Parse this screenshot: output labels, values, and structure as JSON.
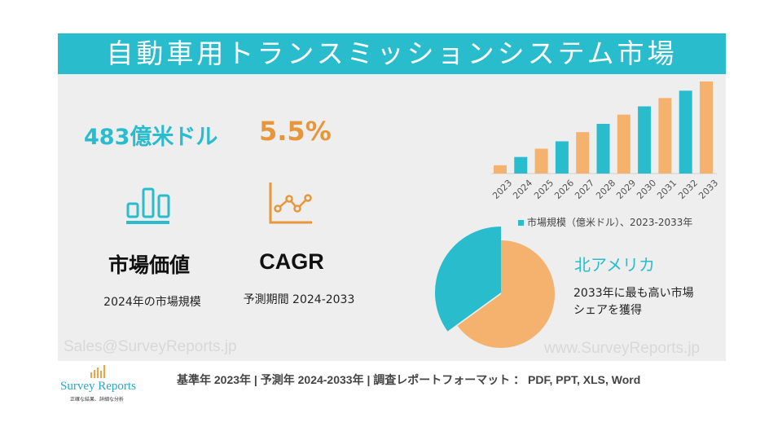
{
  "title": "自動車用トランスミッションシステム市場",
  "market_value": {
    "value": "483億米ドル",
    "label": "市場価値",
    "sub": "2024年の市場規模",
    "icon": "bar-chart-icon"
  },
  "cagr": {
    "value": "5.5%",
    "label": "CAGR",
    "sub": "予測期間 2024-2033",
    "icon": "line-chart-icon"
  },
  "colors": {
    "teal": "#29bccc",
    "orange": "#f5b26e",
    "orange_text": "#e8963a"
  },
  "chart_data": [
    {
      "type": "bar",
      "categories": [
        "2023",
        "2024",
        "2025",
        "2026",
        "2027",
        "2028",
        "2029",
        "2030",
        "2031",
        "2032",
        "2033"
      ],
      "values": [
        9,
        18,
        27,
        35,
        45,
        54,
        64,
        73,
        82,
        90,
        100
      ],
      "value_note": "relative heights, no axis values printed",
      "legend": "市場規模（億米ドル）、2023-2033年",
      "legend_position": "bottom",
      "bar_colors": [
        "#f5b26e",
        "#29bccc",
        "#f5b26e",
        "#29bccc",
        "#f5b26e",
        "#29bccc",
        "#f5b26e",
        "#29bccc",
        "#f5b26e",
        "#29bccc",
        "#f5b26e"
      ]
    },
    {
      "type": "pie",
      "values": [
        35,
        65
      ],
      "colors": [
        "#29bccc",
        "#f5b26e"
      ]
    }
  ],
  "region": {
    "name": "北アメリカ",
    "desc_line1": "2033年に最も高い市場",
    "desc_line2": "シェアを獲得"
  },
  "watermark_left": "Sales@SurveyReports.jp",
  "watermark_right": "www.SurveyReports.jp",
  "logo": {
    "name": "Survey Reports",
    "tagline": "正確な結果、詳細な分析"
  },
  "footer": "基準年 2023年 | 予測年 2024-2033年 | 調査レポートフォーマット ： PDF, PPT, XLS, Word"
}
